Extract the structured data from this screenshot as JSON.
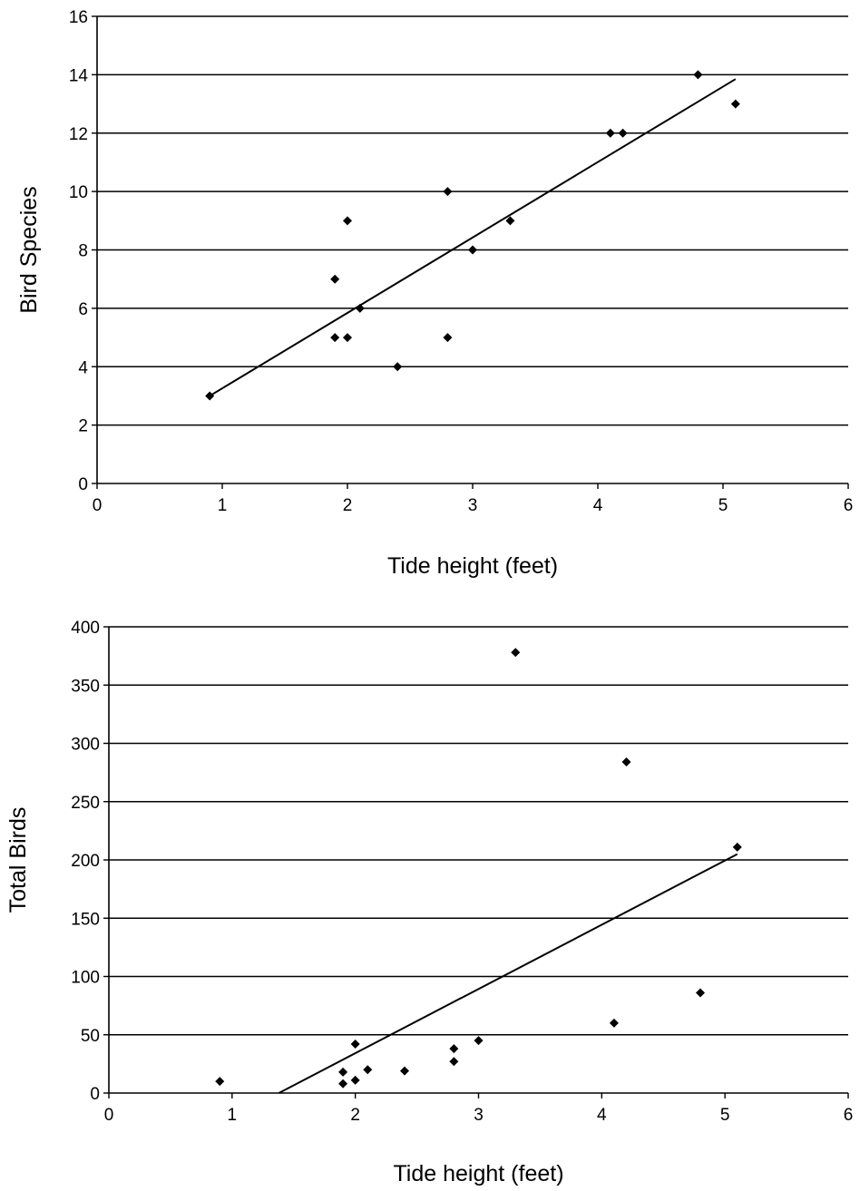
{
  "chart_data": [
    {
      "type": "scatter",
      "title": "",
      "xlabel": "Tide height (feet)",
      "ylabel": "Bird Species",
      "xlim": [
        0,
        6
      ],
      "ylim": [
        0,
        16
      ],
      "x_ticks": [
        0,
        1,
        2,
        3,
        4,
        5,
        6
      ],
      "y_ticks": [
        0,
        2,
        4,
        6,
        8,
        10,
        12,
        14,
        16
      ],
      "grid": "horizontal",
      "legend": "none",
      "series": [
        {
          "points": [
            {
              "x": 0.9,
              "y": 3
            },
            {
              "x": 1.9,
              "y": 7
            },
            {
              "x": 1.9,
              "y": 5
            },
            {
              "x": 2.0,
              "y": 9
            },
            {
              "x": 2.0,
              "y": 5
            },
            {
              "x": 2.1,
              "y": 6
            },
            {
              "x": 2.4,
              "y": 4
            },
            {
              "x": 2.8,
              "y": 10
            },
            {
              "x": 2.8,
              "y": 5
            },
            {
              "x": 3.0,
              "y": 8
            },
            {
              "x": 3.3,
              "y": 9
            },
            {
              "x": 4.1,
              "y": 12
            },
            {
              "x": 4.2,
              "y": 12
            },
            {
              "x": 4.8,
              "y": 14
            },
            {
              "x": 5.1,
              "y": 13
            }
          ]
        }
      ],
      "trendline": {
        "x1": 0.9,
        "y1": 3.0,
        "x2": 5.1,
        "y2": 13.85
      },
      "colors": {
        "marker": "#000000",
        "line": "#000000",
        "grid": "#000000"
      }
    },
    {
      "type": "scatter",
      "title": "",
      "xlabel": "Tide height (feet)",
      "ylabel": "Total Birds",
      "xlim": [
        0,
        6
      ],
      "ylim": [
        0,
        400
      ],
      "x_ticks": [
        0,
        1,
        2,
        3,
        4,
        5,
        6
      ],
      "y_ticks": [
        0,
        50,
        100,
        150,
        200,
        250,
        300,
        350,
        400
      ],
      "grid": "horizontal",
      "legend": "none",
      "series": [
        {
          "points": [
            {
              "x": 0.9,
              "y": 10
            },
            {
              "x": 1.9,
              "y": 8
            },
            {
              "x": 1.9,
              "y": 18
            },
            {
              "x": 2.0,
              "y": 42
            },
            {
              "x": 2.0,
              "y": 11
            },
            {
              "x": 2.1,
              "y": 20
            },
            {
              "x": 2.4,
              "y": 19
            },
            {
              "x": 2.8,
              "y": 38
            },
            {
              "x": 2.8,
              "y": 27
            },
            {
              "x": 3.0,
              "y": 45
            },
            {
              "x": 3.3,
              "y": 378
            },
            {
              "x": 4.1,
              "y": 60
            },
            {
              "x": 4.2,
              "y": 284
            },
            {
              "x": 4.8,
              "y": 86
            },
            {
              "x": 5.1,
              "y": 211
            }
          ]
        }
      ],
      "trendline": {
        "x1": 1.38,
        "y1": 0,
        "x2": 5.1,
        "y2": 205
      },
      "colors": {
        "marker": "#000000",
        "line": "#000000",
        "grid": "#000000"
      }
    }
  ]
}
